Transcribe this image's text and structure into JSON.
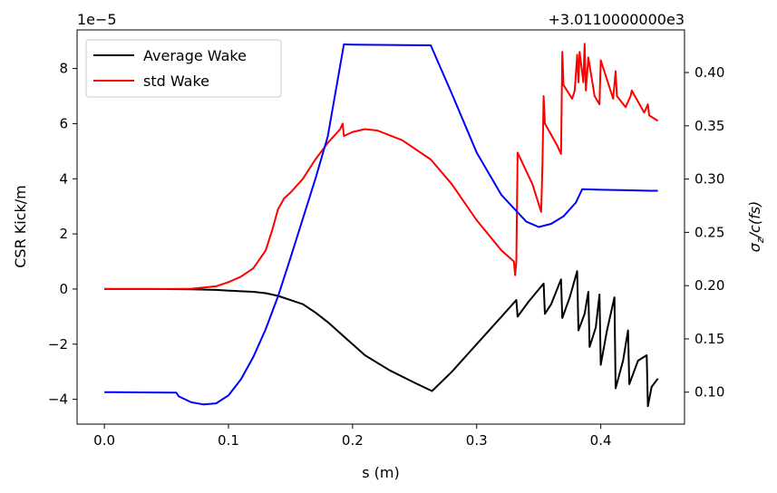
{
  "chart_data": {
    "type": "line",
    "xlabel": "s (m)",
    "ylabel_left": "CSR Kick/m",
    "ylabel_right": "σz/c(fs)",
    "left_offset_text": "1e−5",
    "right_offset_text": "+3.0110000000e3",
    "xlim": [
      -0.022,
      0.4675
    ],
    "ylim_left": [
      -4.9,
      9.4
    ],
    "ylim_right": [
      0.07,
      0.44
    ],
    "xticks": [
      0.0,
      0.1,
      0.2,
      0.3,
      0.4
    ],
    "xtick_labels": [
      "0.0",
      "0.1",
      "0.2",
      "0.3",
      "0.4"
    ],
    "yticks_left": [
      -4,
      -2,
      0,
      2,
      4,
      6,
      8
    ],
    "ytick_labels_left": [
      "−4",
      "−2",
      "0",
      "2",
      "4",
      "6",
      "8"
    ],
    "yticks_right": [
      0.1,
      0.15,
      0.2,
      0.25,
      0.3,
      0.35,
      0.4
    ],
    "ytick_labels_right": [
      "0.10",
      "0.15",
      "0.20",
      "0.25",
      "0.30",
      "0.35",
      "0.40"
    ],
    "legend_position": "upper-left",
    "grid": false,
    "series": [
      {
        "name": "Average Wake",
        "axis": "left",
        "color": "#000000",
        "x": [
          0.0,
          0.04,
          0.07,
          0.09,
          0.11,
          0.12,
          0.13,
          0.14,
          0.15,
          0.16,
          0.17,
          0.18,
          0.19,
          0.195,
          0.21,
          0.23,
          0.25,
          0.264,
          0.28,
          0.3,
          0.32,
          0.332,
          0.333,
          0.342,
          0.354,
          0.355,
          0.36,
          0.368,
          0.369,
          0.375,
          0.381,
          0.382,
          0.387,
          0.39,
          0.391,
          0.396,
          0.399,
          0.4,
          0.405,
          0.411,
          0.412,
          0.418,
          0.422,
          0.423,
          0.43,
          0.437,
          0.438,
          0.441,
          0.446
        ],
        "y": [
          0.0,
          0.0,
          -0.01,
          -0.03,
          -0.08,
          -0.1,
          -0.15,
          -0.25,
          -0.4,
          -0.55,
          -0.85,
          -1.2,
          -1.6,
          -1.8,
          -2.4,
          -2.95,
          -3.4,
          -3.7,
          -3.0,
          -2.0,
          -1.0,
          -0.4,
          -1.0,
          -0.45,
          0.2,
          -0.9,
          -0.55,
          0.35,
          -1.05,
          -0.3,
          0.65,
          -1.5,
          -0.9,
          -0.1,
          -2.1,
          -1.4,
          -0.2,
          -2.75,
          -1.5,
          -0.3,
          -3.6,
          -2.6,
          -1.5,
          -3.45,
          -2.6,
          -2.4,
          -4.25,
          -3.55,
          -3.25
        ]
      },
      {
        "name": "std Wake",
        "axis": "left",
        "color": "#ff0000",
        "x": [
          0.0,
          0.05,
          0.07,
          0.09,
          0.1,
          0.11,
          0.12,
          0.13,
          0.135,
          0.14,
          0.145,
          0.15,
          0.16,
          0.17,
          0.18,
          0.19,
          0.192,
          0.193,
          0.2,
          0.21,
          0.22,
          0.24,
          0.263,
          0.28,
          0.3,
          0.32,
          0.33,
          0.331,
          0.332,
          0.333,
          0.345,
          0.352,
          0.353,
          0.354,
          0.355,
          0.365,
          0.368,
          0.369,
          0.37,
          0.377,
          0.379,
          0.381,
          0.382,
          0.383,
          0.386,
          0.387,
          0.388,
          0.39,
          0.395,
          0.399,
          0.4,
          0.41,
          0.412,
          0.413,
          0.42,
          0.424,
          0.425,
          0.435,
          0.438,
          0.439,
          0.446
        ],
        "y": [
          0.0,
          0.0,
          0.01,
          0.1,
          0.25,
          0.45,
          0.75,
          1.4,
          2.1,
          2.9,
          3.3,
          3.5,
          4.0,
          4.7,
          5.3,
          5.8,
          6.0,
          5.55,
          5.7,
          5.8,
          5.75,
          5.4,
          4.7,
          3.8,
          2.5,
          1.4,
          1.0,
          0.5,
          1.0,
          4.95,
          3.8,
          2.8,
          4.5,
          7.0,
          6.0,
          5.2,
          4.9,
          8.6,
          7.4,
          6.9,
          7.2,
          8.5,
          7.5,
          8.6,
          7.5,
          8.9,
          7.2,
          8.4,
          7.0,
          6.7,
          8.3,
          6.9,
          7.9,
          7.0,
          6.6,
          7.0,
          7.2,
          6.4,
          6.7,
          6.3,
          6.1
        ]
      },
      {
        "name": "",
        "axis": "right",
        "color": "#0000ff",
        "x": [
          0.0,
          0.03,
          0.058,
          0.06,
          0.07,
          0.08,
          0.09,
          0.1,
          0.11,
          0.12,
          0.13,
          0.14,
          0.15,
          0.16,
          0.17,
          0.18,
          0.193,
          0.2,
          0.22,
          0.24,
          0.263,
          0.28,
          0.3,
          0.32,
          0.34,
          0.35,
          0.36,
          0.37,
          0.38,
          0.385,
          0.4,
          0.42,
          0.44,
          0.446
        ],
        "y": [
          0.1,
          0.0998,
          0.0995,
          0.096,
          0.0905,
          0.0885,
          0.0895,
          0.097,
          0.112,
          0.133,
          0.159,
          0.19,
          0.226,
          0.263,
          0.3,
          0.34,
          0.4265,
          0.4262,
          0.426,
          0.4258,
          0.4255,
          0.38,
          0.325,
          0.285,
          0.26,
          0.255,
          0.258,
          0.265,
          0.278,
          0.2905,
          0.29,
          0.2895,
          0.289,
          0.289
        ]
      }
    ],
    "legend": {
      "entries": [
        {
          "label": "Average Wake",
          "color": "#000000"
        },
        {
          "label": "std Wake",
          "color": "#ff0000"
        }
      ]
    }
  }
}
